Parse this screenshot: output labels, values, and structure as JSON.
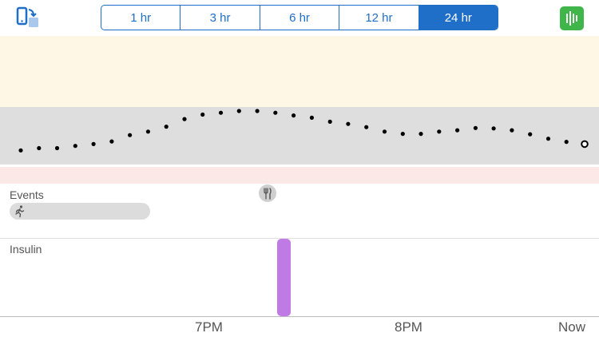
{
  "toolbar": {
    "rotate_icon": "rotate-device-icon",
    "stats_icon": "bar-chart-icon",
    "range_options": [
      {
        "label": "1 hr",
        "active": false
      },
      {
        "label": "3 hr",
        "active": false
      },
      {
        "label": "6 hr",
        "active": false
      },
      {
        "label": "12 hr",
        "active": false
      },
      {
        "label": "24 hr",
        "active": true
      }
    ],
    "accent_color": "#1f6fc9",
    "stats_color": "#3fb54a"
  },
  "zones": {
    "high_color": "#fff7e6",
    "target_color": "#dedede",
    "low_color": "#fde8e8"
  },
  "events": {
    "label": "Events",
    "exercise_icon": "running-person-icon",
    "meal_icon": "fork-knife-icon"
  },
  "insulin": {
    "label": "Insulin",
    "bar_color": "#c07ae6"
  },
  "time_axis": {
    "labels": [
      "7PM",
      "8PM",
      "Now"
    ]
  },
  "chart_data": {
    "type": "scatter",
    "title": "",
    "xlabel": "",
    "ylabel": "",
    "series": [
      {
        "values": [
          0.12,
          0.17,
          0.17,
          0.22,
          0.26,
          0.32,
          0.46,
          0.54,
          0.65,
          0.82,
          0.92,
          0.96,
          1.0,
          1.0,
          0.96,
          0.9,
          0.85,
          0.76,
          0.71,
          0.64,
          0.54,
          0.49,
          0.49,
          0.54,
          0.57,
          0.62,
          0.61,
          0.57,
          0.48,
          0.38,
          0.31,
          0.26
        ]
      }
    ],
    "grid": false
  }
}
